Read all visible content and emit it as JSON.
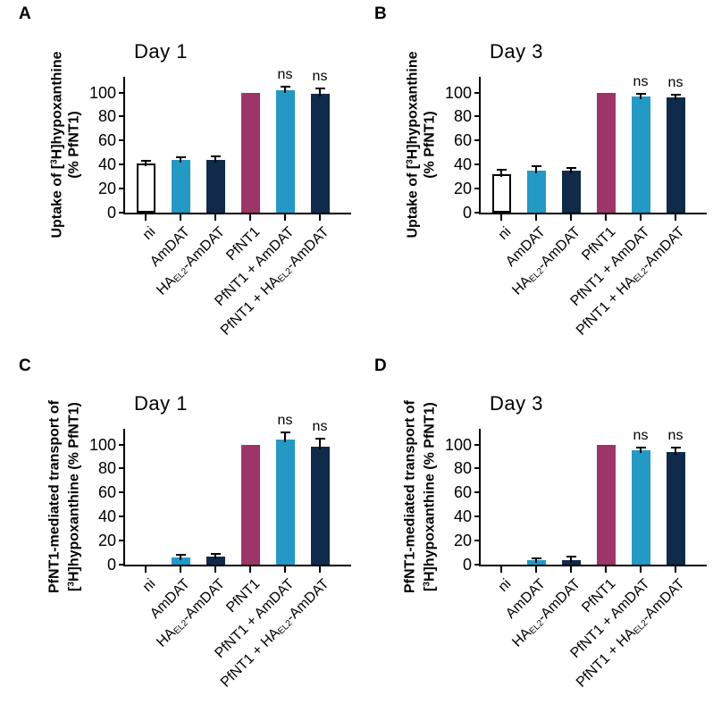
{
  "colors": {
    "background": "#ffffff",
    "axis": "#000000",
    "text": "#000000",
    "bar_fills": [
      "#ffffff",
      "#2399c5",
      "#0f2a4a",
      "#9d3568",
      "#2399c5",
      "#0f2a4a"
    ],
    "bar_edge": "#000000",
    "error_bar": "#000000"
  },
  "axis": {
    "yticks": [
      0,
      20,
      40,
      60,
      80,
      100
    ],
    "ylim": [
      0,
      113
    ],
    "grid": false
  },
  "categories_rich": [
    [
      {
        "t": "ni"
      }
    ],
    [
      {
        "t": "AmDAT"
      }
    ],
    [
      {
        "t": "HA"
      },
      {
        "t": "EL2",
        "s": "sub"
      },
      {
        "t": "-AmDAT"
      }
    ],
    [
      {
        "t": "PfNT1"
      }
    ],
    [
      {
        "t": "PfNT1 + AmDAT"
      }
    ],
    [
      {
        "t": "PfNT1 + HA"
      },
      {
        "t": "EL2",
        "s": "sub"
      },
      {
        "t": "-AmDAT"
      }
    ]
  ],
  "chart_data": [
    {
      "panel": "A",
      "type": "bar",
      "title": "Day 1",
      "ylabel": "Uptake of [3H]hypoxanthine (% PfNT1)",
      "ylabel_rich": [
        [
          {
            "t": "Uptake of ["
          },
          {
            "t": "3",
            "s": "sup"
          },
          {
            "t": "H]hypoxanthine"
          }
        ],
        [
          {
            "t": "(% PfNT1)"
          }
        ]
      ],
      "categories": [
        "ni",
        "AmDAT",
        "HAEL2-AmDAT",
        "PfNT1",
        "PfNT1 + AmDAT",
        "PfNT1 + HAEL2-AmDAT"
      ],
      "values": [
        41,
        44,
        44,
        100,
        102,
        99
      ],
      "errors": [
        2,
        2,
        3,
        0,
        3,
        4
      ],
      "annotations": [
        "",
        "",
        "",
        "",
        "ns",
        "ns"
      ],
      "ylim": [
        0,
        113
      ],
      "legend": false
    },
    {
      "panel": "B",
      "type": "bar",
      "title": "Day 3",
      "ylabel": "Uptake of [3H]hypoxanthine (% PfNT1)",
      "ylabel_rich": [
        [
          {
            "t": "Uptake of ["
          },
          {
            "t": "3",
            "s": "sup"
          },
          {
            "t": "H]hypoxanthine"
          }
        ],
        [
          {
            "t": "(% PfNT1)"
          }
        ]
      ],
      "categories": [
        "ni",
        "AmDAT",
        "HAEL2-AmDAT",
        "PfNT1",
        "PfNT1 + AmDAT",
        "PfNT1 + HAEL2-AmDAT"
      ],
      "values": [
        32,
        35,
        35,
        100,
        97,
        96
      ],
      "errors": [
        4,
        4,
        2,
        0,
        2,
        2
      ],
      "annotations": [
        "",
        "",
        "",
        "",
        "ns",
        "ns"
      ],
      "ylim": [
        0,
        113
      ],
      "legend": false
    },
    {
      "panel": "C",
      "type": "bar",
      "title": "Day 1",
      "ylabel": "PfNT1-mediated transport of [3H]hypoxanthine (% PfNT1)",
      "ylabel_rich": [
        [
          {
            "t": "PfNT1-mediated transport of"
          }
        ],
        [
          {
            "t": "["
          },
          {
            "t": "3",
            "s": "sup"
          },
          {
            "t": "H]hypoxanthine (% PfNT1)"
          }
        ]
      ],
      "categories": [
        "ni",
        "AmDAT",
        "HAEL2-AmDAT",
        "PfNT1",
        "PfNT1 + AmDAT",
        "PfNT1 + HAEL2-AmDAT"
      ],
      "values": [
        0,
        6,
        7,
        100,
        104,
        98
      ],
      "errors": [
        0,
        2,
        2,
        0,
        6,
        7
      ],
      "annotations": [
        "",
        "",
        "",
        "",
        "ns",
        "ns"
      ],
      "ylim": [
        0,
        113
      ],
      "legend": false
    },
    {
      "panel": "D",
      "type": "bar",
      "title": "Day 3",
      "ylabel": "PfNT1-mediated transport of [3H]hypoxanthine (% PfNT1)",
      "ylabel_rich": [
        [
          {
            "t": "PfNT1-mediated transport of"
          }
        ],
        [
          {
            "t": "["
          },
          {
            "t": "3",
            "s": "sup"
          },
          {
            "t": "H]hypoxanthine (% PfNT1)"
          }
        ]
      ],
      "categories": [
        "ni",
        "AmDAT",
        "HAEL2-AmDAT",
        "PfNT1",
        "PfNT1 + AmDAT",
        "PfNT1 + HAEL2-AmDAT"
      ],
      "values": [
        0,
        4,
        4,
        100,
        95,
        94
      ],
      "errors": [
        0,
        1.5,
        2.5,
        0,
        2.5,
        3.5
      ],
      "annotations": [
        "",
        "",
        "",
        "",
        "ns",
        "ns"
      ],
      "ylim": [
        0,
        113
      ],
      "legend": false
    }
  ]
}
